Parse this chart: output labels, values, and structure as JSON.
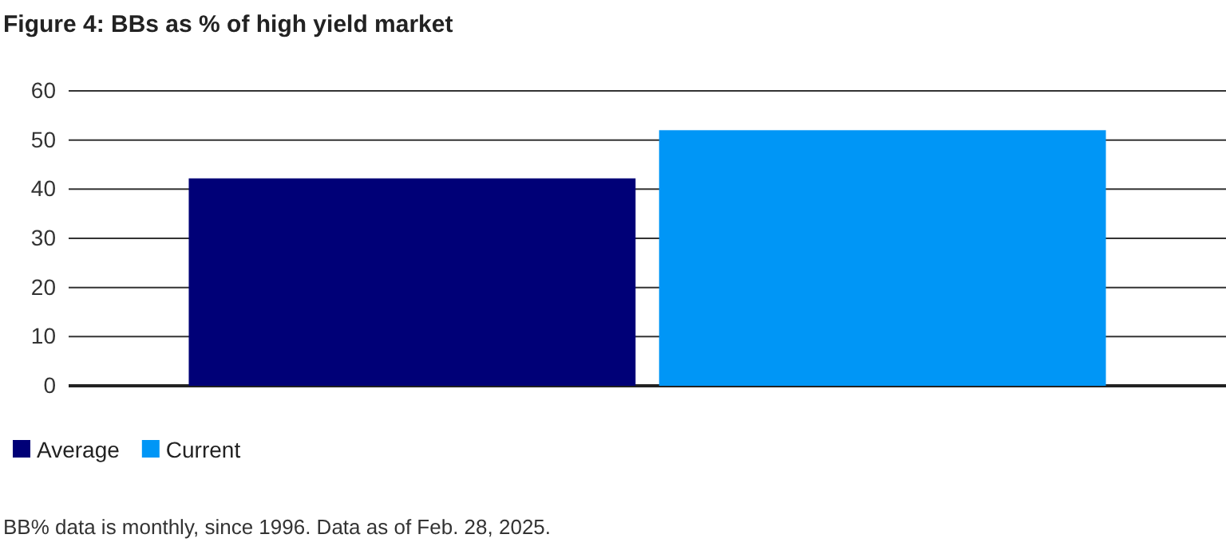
{
  "chart_data": {
    "type": "bar",
    "title": "Figure 4: BBs as % of high yield market",
    "categories": [
      null
    ],
    "series": [
      {
        "name": "Average",
        "color": "#000077",
        "values": [
          42.2
        ]
      },
      {
        "name": "Current",
        "color": "#0096f6",
        "values": [
          52
        ]
      }
    ],
    "ylim": [
      0,
      60
    ],
    "yticks": [
      0,
      10,
      20,
      30,
      40,
      50,
      60
    ],
    "grid": "y",
    "legend": "bottom",
    "annotations": [
      "BB% data is monthly, since 1996. Data as of Feb. 28, 2025."
    ]
  }
}
